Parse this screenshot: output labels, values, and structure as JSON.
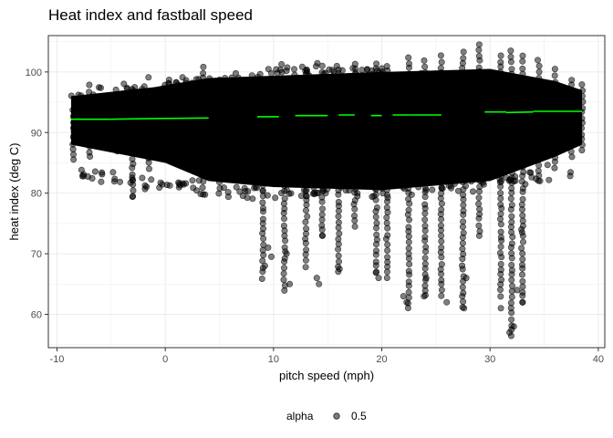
{
  "chart_data": {
    "type": "scatter",
    "title": "Heat index and fastball speed",
    "xlabel": "pitch speed (mph)",
    "ylabel": "heat index (deg C)",
    "xlim": [
      -10.8,
      40.6
    ],
    "ylim": [
      54.5,
      106.0
    ],
    "x_ticks": [
      -10,
      0,
      10,
      20,
      30,
      40
    ],
    "y_ticks": [
      60,
      70,
      80,
      90,
      100
    ],
    "grid": true,
    "point_color": "#000000",
    "point_alpha": 0.5,
    "legend": {
      "position": "bottom",
      "title": "alpha",
      "entries": [
        {
          "label": "0.5"
        }
      ]
    },
    "band": {
      "color": "#000000",
      "x_range": [
        -8.7,
        38.5
      ],
      "core_low": 82,
      "core_high": 99
    },
    "columns": [
      {
        "x": -8.5,
        "min": 85.5,
        "max": 94
      },
      {
        "x": -7,
        "min": 86,
        "max": 98
      },
      {
        "x": -4.5,
        "min": 87,
        "max": 97
      },
      {
        "x": -3,
        "min": 79.5,
        "max": 97
      },
      {
        "x": -1.5,
        "min": 84,
        "max": 97
      },
      {
        "x": 3.5,
        "min": 81,
        "max": 101
      },
      {
        "x": 5,
        "min": 80,
        "max": 99
      },
      {
        "x": 9,
        "min": 66,
        "max": 99
      },
      {
        "x": 11,
        "min": 64,
        "max": 99
      },
      {
        "x": 13,
        "min": 68,
        "max": 101
      },
      {
        "x": 14.5,
        "min": 73,
        "max": 101
      },
      {
        "x": 16,
        "min": 67,
        "max": 101
      },
      {
        "x": 17.5,
        "min": 74.5,
        "max": 102
      },
      {
        "x": 19.5,
        "min": 67,
        "max": 102
      },
      {
        "x": 20.5,
        "min": 66,
        "max": 102
      },
      {
        "x": 22.5,
        "min": 61,
        "max": 103
      },
      {
        "x": 24,
        "min": 63,
        "max": 102
      },
      {
        "x": 25.5,
        "min": 63,
        "max": 103
      },
      {
        "x": 27.5,
        "min": 61,
        "max": 104
      },
      {
        "x": 29,
        "min": 73,
        "max": 105
      },
      {
        "x": 31,
        "min": 63,
        "max": 103
      },
      {
        "x": 32,
        "min": 56.5,
        "max": 104
      },
      {
        "x": 33,
        "min": 62,
        "max": 103
      },
      {
        "x": 34.5,
        "min": 82,
        "max": 102
      },
      {
        "x": 36,
        "min": 85,
        "max": 101
      },
      {
        "x": 37.5,
        "min": 86,
        "max": 99
      },
      {
        "x": 38.5,
        "min": 87,
        "max": 98
      }
    ],
    "outliers": [
      {
        "x": 9.5,
        "y": 71
      },
      {
        "x": 9.8,
        "y": 69.5
      },
      {
        "x": 9.2,
        "y": 68
      },
      {
        "x": 11.2,
        "y": 70
      },
      {
        "x": 11.5,
        "y": 65
      },
      {
        "x": 14.5,
        "y": 73
      },
      {
        "x": 14,
        "y": 66
      },
      {
        "x": 14.2,
        "y": 65
      },
      {
        "x": 16.1,
        "y": 67.5
      },
      {
        "x": 19.5,
        "y": 67
      },
      {
        "x": 19.7,
        "y": 66
      },
      {
        "x": 22,
        "y": 63
      },
      {
        "x": 22.3,
        "y": 62
      },
      {
        "x": 23.9,
        "y": 63
      },
      {
        "x": 24.1,
        "y": 66
      },
      {
        "x": 26,
        "y": 62
      },
      {
        "x": 27.6,
        "y": 61
      },
      {
        "x": 27.8,
        "y": 66
      },
      {
        "x": 31,
        "y": 61
      },
      {
        "x": 31.8,
        "y": 57
      },
      {
        "x": 32.2,
        "y": 58
      },
      {
        "x": 32.5,
        "y": 64
      },
      {
        "x": 33,
        "y": 62
      },
      {
        "x": 32.9,
        "y": 74
      },
      {
        "x": -3,
        "y": 79.5
      }
    ],
    "series": [
      {
        "color": "#000000",
        "x": [
          -8.7,
          -5,
          -2,
          0
        ],
        "y": [
          92.8,
          92.7,
          92.6,
          92.5
        ]
      },
      {
        "color": "#00ff00",
        "segments": [
          {
            "x": [
              -8.7,
              -5
            ],
            "y": [
              92.2,
              92.2
            ]
          },
          {
            "x": [
              -5,
              -1
            ],
            "y": [
              92.2,
              92.3
            ]
          },
          {
            "x": [
              -1,
              4
            ],
            "y": [
              92.3,
              92.4
            ]
          },
          {
            "x": [
              8.5,
              10.5
            ],
            "y": [
              92.6,
              92.6
            ]
          },
          {
            "x": [
              12,
              15
            ],
            "y": [
              92.8,
              92.8
            ]
          },
          {
            "x": [
              16,
              17.5
            ],
            "y": [
              92.9,
              92.9
            ]
          },
          {
            "x": [
              19,
              20
            ],
            "y": [
              92.8,
              92.8
            ]
          },
          {
            "x": [
              21,
              22.5
            ],
            "y": [
              92.9,
              92.9
            ]
          },
          {
            "x": [
              22.5,
              25.5
            ],
            "y": [
              92.9,
              92.9
            ]
          },
          {
            "x": [
              29.5,
              31.5
            ],
            "y": [
              93.4,
              93.4
            ]
          },
          {
            "x": [
              31.5,
              34
            ],
            "y": [
              93.3,
              93.4
            ]
          },
          {
            "x": [
              34,
              38.5
            ],
            "y": [
              93.5,
              93.5
            ]
          }
        ]
      }
    ]
  }
}
